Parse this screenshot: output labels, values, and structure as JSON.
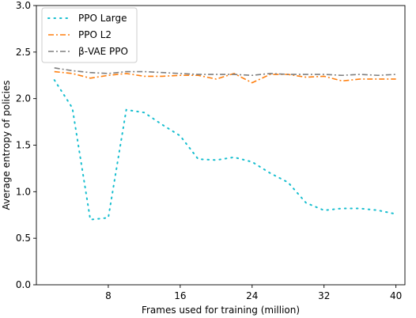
{
  "chart_data": {
    "type": "line",
    "title": "",
    "xlabel": "Frames used for training (million)",
    "ylabel": "Average entropy of policies",
    "xlim": [
      0,
      41
    ],
    "ylim": [
      0.0,
      3.0
    ],
    "xticks": [
      8,
      16,
      24,
      32,
      40
    ],
    "xtick_labels": [
      "8",
      "16",
      "24",
      "32",
      "40"
    ],
    "yticks": [
      0.0,
      0.5,
      1.0,
      1.5,
      2.0,
      2.5,
      3.0
    ],
    "ytick_labels": [
      "0.0",
      "0.5",
      "1.0",
      "1.5",
      "2.0",
      "2.5",
      "3.0"
    ],
    "grid": false,
    "legend_position": "top-left",
    "series": [
      {
        "name": "PPO Large",
        "color": "#17becf",
        "style": "dotted",
        "x": [
          2,
          4,
          6,
          8,
          10,
          12,
          14,
          16,
          18,
          20,
          22,
          24,
          26,
          28,
          30,
          32,
          34,
          36,
          38,
          40
        ],
        "y": [
          2.2,
          1.9,
          0.7,
          0.72,
          1.88,
          1.85,
          1.72,
          1.6,
          1.35,
          1.34,
          1.37,
          1.32,
          1.2,
          1.1,
          0.88,
          0.8,
          0.82,
          0.82,
          0.8,
          0.76
        ]
      },
      {
        "name": "PPO L2",
        "color": "#ff7f0e",
        "style": "dashdot",
        "x": [
          2,
          4,
          6,
          8,
          10,
          12,
          14,
          16,
          18,
          20,
          22,
          24,
          26,
          28,
          30,
          32,
          34,
          36,
          38,
          40
        ],
        "y": [
          2.29,
          2.27,
          2.22,
          2.25,
          2.27,
          2.24,
          2.24,
          2.25,
          2.25,
          2.21,
          2.27,
          2.17,
          2.26,
          2.26,
          2.23,
          2.24,
          2.19,
          2.21,
          2.21,
          2.21
        ]
      },
      {
        "name": "β-VAE PPO",
        "color": "#7f7f7f",
        "style": "dashdot",
        "x": [
          2,
          4,
          6,
          8,
          10,
          12,
          14,
          16,
          18,
          20,
          22,
          24,
          26,
          28,
          30,
          32,
          34,
          36,
          38,
          40
        ],
        "y": [
          2.33,
          2.3,
          2.28,
          2.27,
          2.29,
          2.29,
          2.28,
          2.27,
          2.26,
          2.26,
          2.26,
          2.25,
          2.27,
          2.26,
          2.26,
          2.26,
          2.25,
          2.26,
          2.25,
          2.26
        ]
      }
    ]
  }
}
